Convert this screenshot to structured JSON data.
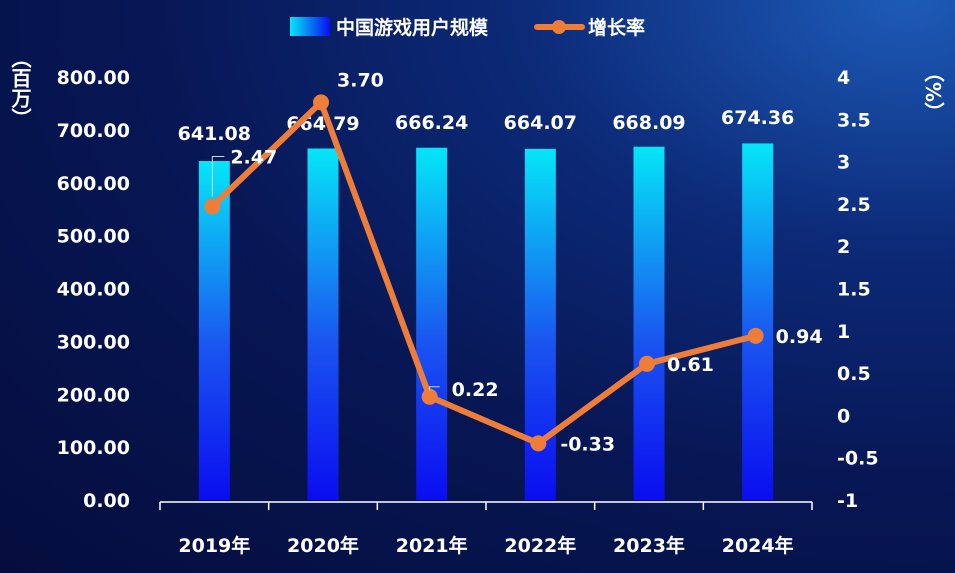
{
  "chart_data": {
    "type": "bar+line",
    "categories": [
      "2019年",
      "2020年",
      "2021年",
      "2022年",
      "2023年",
      "2024年"
    ],
    "series": [
      {
        "name": "中国游戏用户规模",
        "type": "bar",
        "axis": "left",
        "values": [
          641.08,
          664.79,
          666.24,
          664.07,
          668.09,
          674.36
        ],
        "labels": [
          "641.08",
          "664.79",
          "666.24",
          "664.07",
          "668.09",
          "674.36"
        ]
      },
      {
        "name": "增长率",
        "type": "line",
        "axis": "right",
        "values": [
          2.47,
          3.7,
          0.22,
          -0.33,
          0.61,
          0.94
        ],
        "labels": [
          "2.47",
          "3.70",
          "0.22",
          "-0.33",
          "0.61",
          "0.94"
        ]
      }
    ],
    "left_axis": {
      "unit_label": "（百万）",
      "ylim": [
        0,
        800
      ],
      "ticks": [
        "0.00",
        "100.00",
        "200.00",
        "300.00",
        "400.00",
        "500.00",
        "600.00",
        "700.00",
        "800.00"
      ]
    },
    "right_axis": {
      "unit_label": "（%）",
      "ylim": [
        -1,
        4
      ],
      "ticks": [
        "-1",
        "-0.5",
        "0",
        "0.5",
        "1",
        "1.5",
        "2",
        "2.5",
        "3",
        "3.5",
        "4"
      ]
    },
    "legend_position": "top-center",
    "grid": false,
    "colors": {
      "bar_top": "#05e6f7",
      "bar_bottom": "#0a0df0",
      "line": "#ef7d3a",
      "axis": "#ffffff"
    }
  }
}
